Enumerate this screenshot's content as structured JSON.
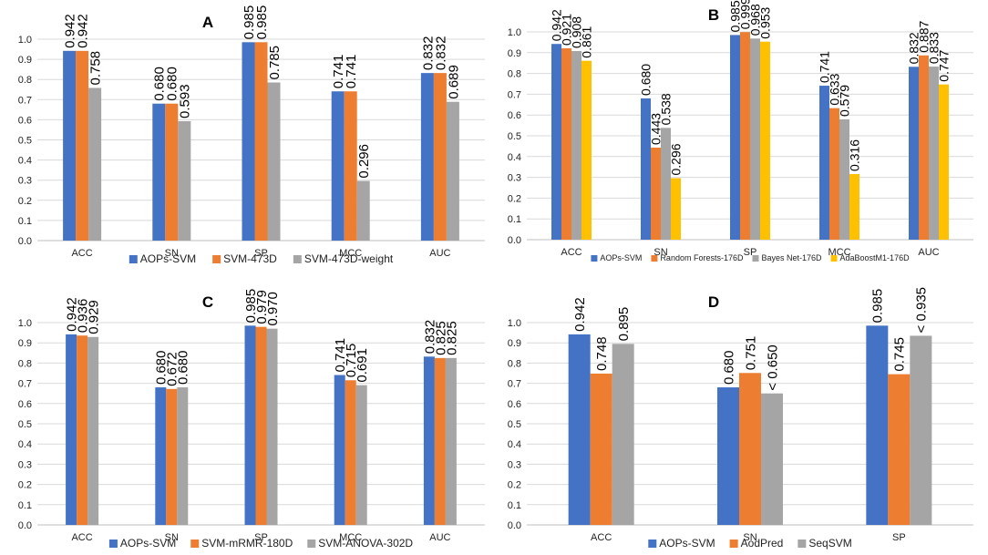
{
  "colors": {
    "blue": "#4472C4",
    "orange": "#ED7D31",
    "gray": "#A5A5A5",
    "yellow": "#FFC000",
    "grid": "#D9D9D9",
    "axis": "#BFBFBF",
    "text": "#222222"
  },
  "chart_data": [
    {
      "panel": "A",
      "type": "bar",
      "categories": [
        "ACC",
        "SN",
        "SP",
        "MCC",
        "AUC"
      ],
      "ylim": [
        0,
        1.0
      ],
      "yticks": [
        "0.0",
        "0.1",
        "0.2",
        "0.3",
        "0.4",
        "0.5",
        "0.6",
        "0.7",
        "0.8",
        "0.9",
        "1.0"
      ],
      "legend_position": "bottom",
      "series": [
        {
          "name": "AOPs-SVM",
          "color": "blue",
          "values": [
            0.942,
            0.68,
            0.985,
            0.741,
            0.832
          ],
          "labels": [
            "0.942",
            "0.680",
            "0.985",
            "0.741",
            "0.832"
          ]
        },
        {
          "name": "SVM-473D",
          "color": "orange",
          "values": [
            0.942,
            0.68,
            0.985,
            0.741,
            0.832
          ],
          "labels": [
            "0.942",
            "0.680",
            "0.985",
            "0.741",
            "0.832"
          ]
        },
        {
          "name": "SVM-473D-weight",
          "color": "gray",
          "values": [
            0.758,
            0.593,
            0.785,
            0.296,
            0.689
          ],
          "labels": [
            "0.758",
            "0.593",
            "0.785",
            "0.296",
            "0.689"
          ]
        }
      ]
    },
    {
      "panel": "B",
      "type": "bar",
      "categories": [
        "ACC",
        "SN",
        "SP",
        "MCC",
        "AUC"
      ],
      "ylim": [
        0,
        1.0
      ],
      "yticks": [
        "0.0",
        "0.1",
        "0.2",
        "0.3",
        "0.4",
        "0.5",
        "0.6",
        "0.7",
        "0.8",
        "0.9",
        "1.0"
      ],
      "legend_position": "bottom",
      "series": [
        {
          "name": "AOPs-SVM",
          "color": "blue",
          "values": [
            0.942,
            0.68,
            0.985,
            0.741,
            0.832
          ],
          "labels": [
            "0.942",
            "0.680",
            "0.985",
            "0.741",
            "0.832"
          ]
        },
        {
          "name": "Random Forests-176D",
          "color": "orange",
          "values": [
            0.921,
            0.443,
            0.999,
            0.633,
            0.887
          ],
          "labels": [
            "0.921",
            "0.443",
            "0.999",
            "0.633",
            "0.887"
          ]
        },
        {
          "name": "Bayes Net-176D",
          "color": "gray",
          "values": [
            0.908,
            0.538,
            0.968,
            0.579,
            0.833
          ],
          "labels": [
            "0.908",
            "0.538",
            "0.968",
            "0.579",
            "0.833"
          ]
        },
        {
          "name": "AdaBoostM1-176D",
          "color": "yellow",
          "values": [
            0.861,
            0.296,
            0.953,
            0.316,
            0.747
          ],
          "labels": [
            "0.861",
            "0.296",
            "0.953",
            "0.316",
            "0.747"
          ]
        }
      ]
    },
    {
      "panel": "C",
      "type": "bar",
      "categories": [
        "ACC",
        "SN",
        "SP",
        "MCC",
        "AUC"
      ],
      "ylim": [
        0,
        1.0
      ],
      "yticks": [
        "0.0",
        "0.1",
        "0.2",
        "0.3",
        "0.4",
        "0.5",
        "0.6",
        "0.7",
        "0.8",
        "0.9",
        "1.0"
      ],
      "legend_position": "bottom",
      "series": [
        {
          "name": "AOPs-SVM",
          "color": "blue",
          "values": [
            0.942,
            0.68,
            0.985,
            0.741,
            0.832
          ],
          "labels": [
            "0.942",
            "0.680",
            "0.985",
            "0.741",
            "0.832"
          ]
        },
        {
          "name": "SVM-mRMR-180D",
          "color": "orange",
          "values": [
            0.936,
            0.672,
            0.979,
            0.715,
            0.825
          ],
          "labels": [
            "0.936",
            "0.672",
            "0.979",
            "0.715",
            "0.825"
          ]
        },
        {
          "name": "SVM-ANOVA-302D",
          "color": "gray",
          "values": [
            0.929,
            0.68,
            0.97,
            0.691,
            0.825
          ],
          "labels": [
            "0.929",
            "0.680",
            "0.970",
            "0.691",
            "0.825"
          ]
        }
      ]
    },
    {
      "panel": "D",
      "type": "bar",
      "categories": [
        "ACC",
        "SN",
        "SP"
      ],
      "ylim": [
        0,
        1.0
      ],
      "yticks": [
        "0.0",
        "0.1",
        "0.2",
        "0.3",
        "0.4",
        "0.5",
        "0.6",
        "0.7",
        "0.8",
        "0.9",
        "1.0"
      ],
      "legend_position": "bottom",
      "series": [
        {
          "name": "AOPs-SVM",
          "color": "blue",
          "values": [
            0.942,
            0.68,
            0.985
          ],
          "labels": [
            "0.942",
            "0.680",
            "0.985"
          ]
        },
        {
          "name": "AodPred",
          "color": "orange",
          "values": [
            0.748,
            0.751,
            0.745
          ],
          "labels": [
            "0.748",
            "0.751",
            "0.745"
          ]
        },
        {
          "name": "SeqSVM",
          "color": "gray",
          "values": [
            0.895,
            0.65,
            0.935
          ],
          "labels": [
            "0.895",
            "< 0.650",
            "< 0.935"
          ]
        }
      ]
    }
  ]
}
